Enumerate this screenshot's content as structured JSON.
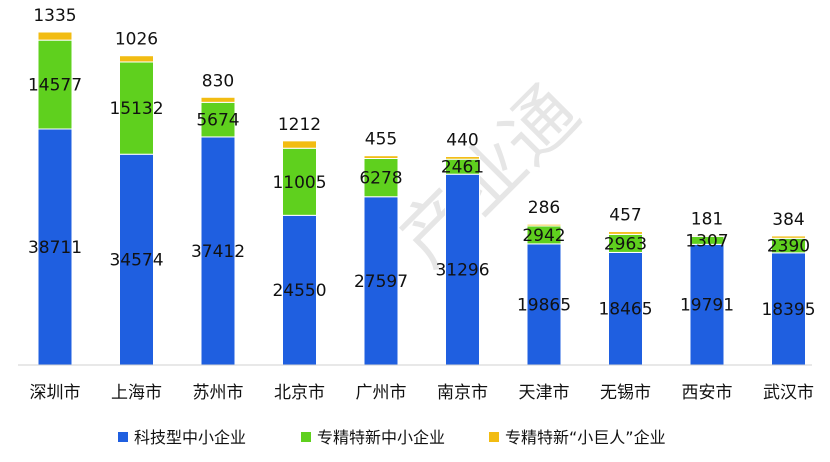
{
  "chart_data": {
    "type": "bar",
    "stacked": true,
    "categories": [
      "深圳市",
      "上海市",
      "苏州市",
      "北京市",
      "广州市",
      "南京市",
      "天津市",
      "无锡市",
      "西安市",
      "武汉市"
    ],
    "series": [
      {
        "name": "科技型中小企业",
        "color": "#1f5fe0",
        "values": [
          38711,
          34574,
          37412,
          24550,
          27597,
          31296,
          19865,
          18465,
          19791,
          18395
        ]
      },
      {
        "name": "专精特新中小企业",
        "color": "#5fd01e",
        "values": [
          14577,
          15132,
          5674,
          11005,
          6278,
          2461,
          2942,
          2963,
          1307,
          2390
        ]
      },
      {
        "name": "专精特新“小巨人”企业",
        "color": "#f2bc12",
        "values": [
          1335,
          1026,
          830,
          1212,
          455,
          440,
          286,
          457,
          181,
          384
        ]
      }
    ],
    "legend": "bottom",
    "grid": false,
    "ylim": [
      0,
      56000
    ]
  },
  "watermark": "产业通"
}
